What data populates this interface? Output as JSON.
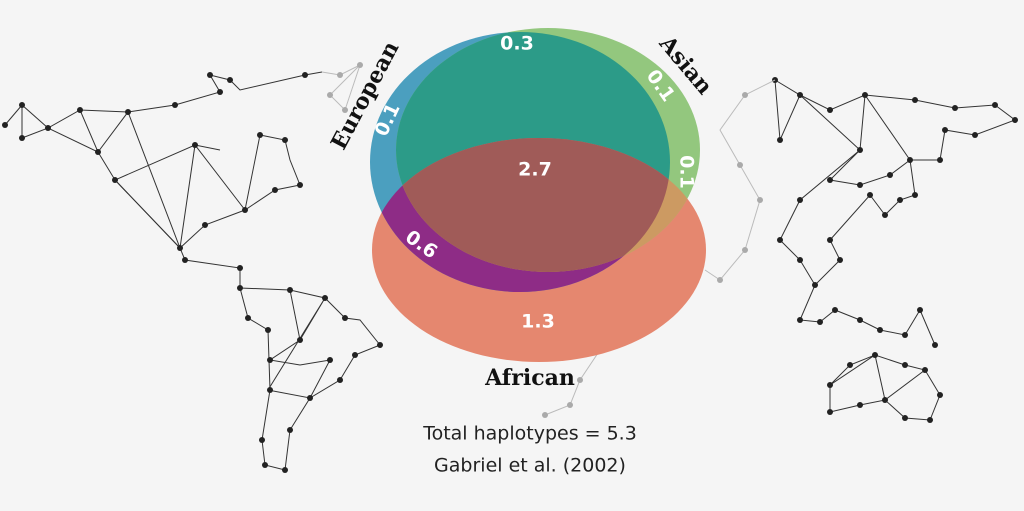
{
  "sets": [
    {
      "label": "European"
    },
    {
      "label": "Asian"
    },
    {
      "label": "African"
    }
  ],
  "regions": {
    "european_asian": 0.3,
    "asian_only": 0.1,
    "european_only": 0.1,
    "asian_african": 0.1,
    "all": 2.7,
    "european_african": 0.6,
    "african_only": 1.3
  },
  "footer": {
    "total": "Total haplotypes = 5.3",
    "source": "Gabriel et al. (2002)"
  }
}
